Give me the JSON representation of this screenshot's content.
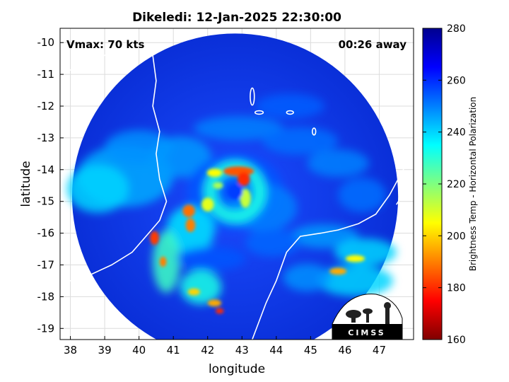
{
  "chart_data": {
    "type": "heatmap",
    "title": "Dikeledi: 12-Jan-2025 22:30:00",
    "xlabel": "longitude",
    "ylabel": "latitude",
    "xlim": [
      37.7,
      48.0
    ],
    "ylim": [
      -19.35,
      -9.55
    ],
    "xticks": [
      38,
      39,
      40,
      41,
      42,
      43,
      44,
      45,
      46,
      47
    ],
    "yticks": [
      -10,
      -11,
      -12,
      -13,
      -14,
      -15,
      -16,
      -17,
      -18,
      -19
    ],
    "grid": true,
    "annotations": {
      "top_left": "Vmax: 70 kts",
      "top_right": "00:26 away"
    },
    "colorbar": {
      "label": "Brightness Temp - Horizontal Polarization",
      "min": 160,
      "max": 280,
      "ticks": [
        160,
        180,
        200,
        220,
        240,
        260,
        280
      ],
      "colormap": "jet"
    },
    "storm_center": {
      "lon": 42.8,
      "lat": -14.7
    },
    "swath_center": {
      "lon": 42.8,
      "lat": -14.85
    },
    "swath_radius_deg": 4.75
  },
  "logo": {
    "text": "CIMSS"
  },
  "colors": {
    "frame": "#000000",
    "grid": "#dcdcdc",
    "coast": "#ffffff"
  }
}
